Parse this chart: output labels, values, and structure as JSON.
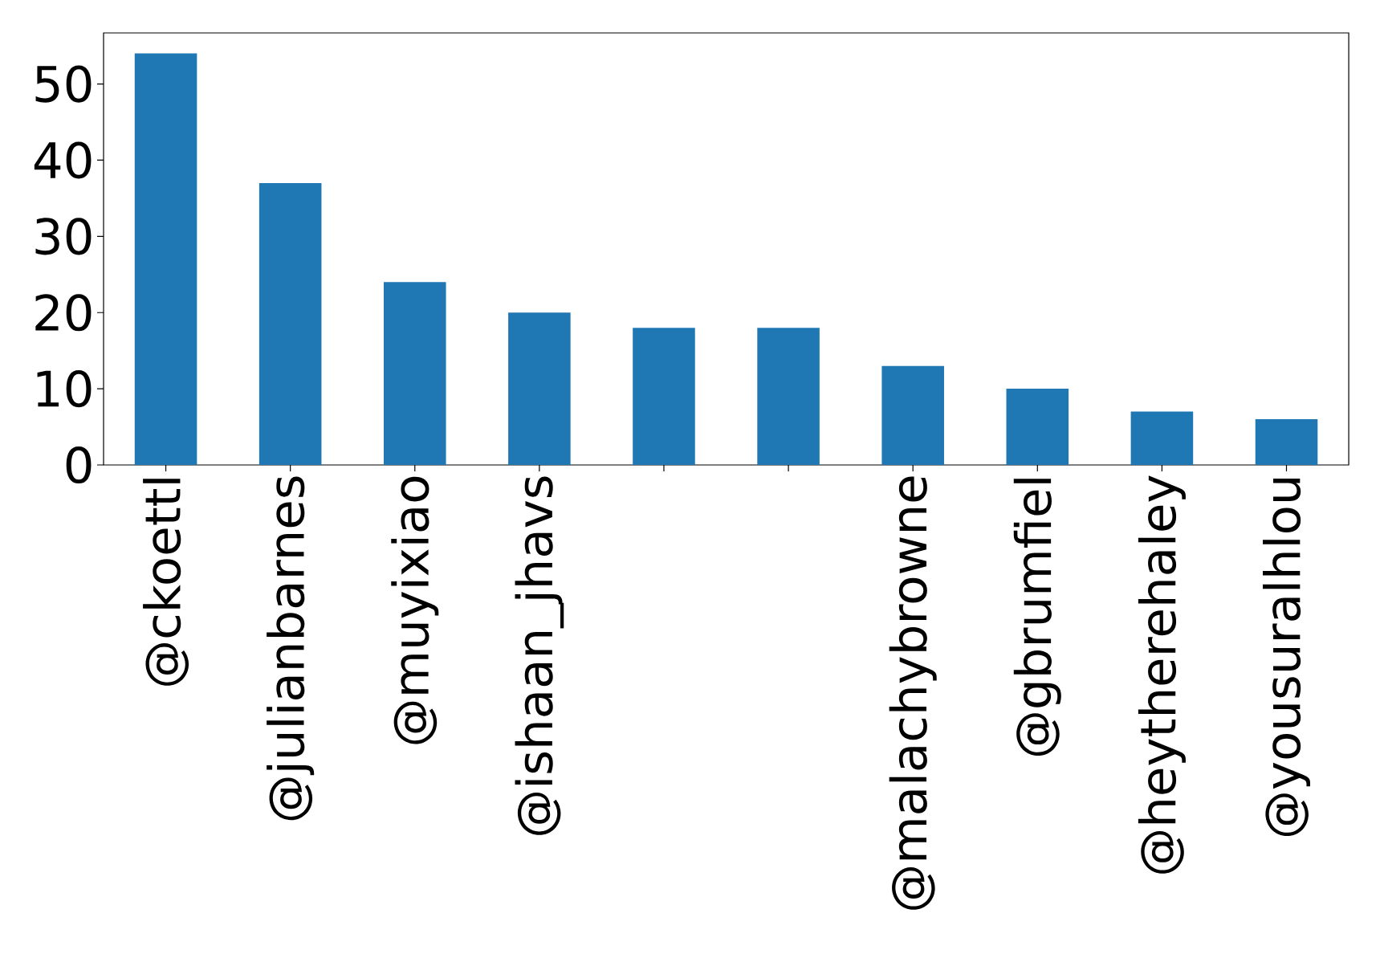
{
  "chart_data": {
    "type": "bar",
    "categories": [
      "@ckoettl",
      "@julianbarnes",
      "@muyixiao",
      "@ishaan_jhavs",
      null,
      null,
      "@malachybrowne",
      "@gbrumfiel",
      "@heytherehaley",
      "@yousuralhlou"
    ],
    "values": [
      54,
      37,
      24,
      20,
      18,
      18,
      13,
      10,
      7,
      6
    ],
    "color": "#1f77b4",
    "ylim": [
      0,
      56.7
    ],
    "yticks": [
      0,
      10,
      20,
      30,
      40,
      50
    ],
    "grid": false
  }
}
